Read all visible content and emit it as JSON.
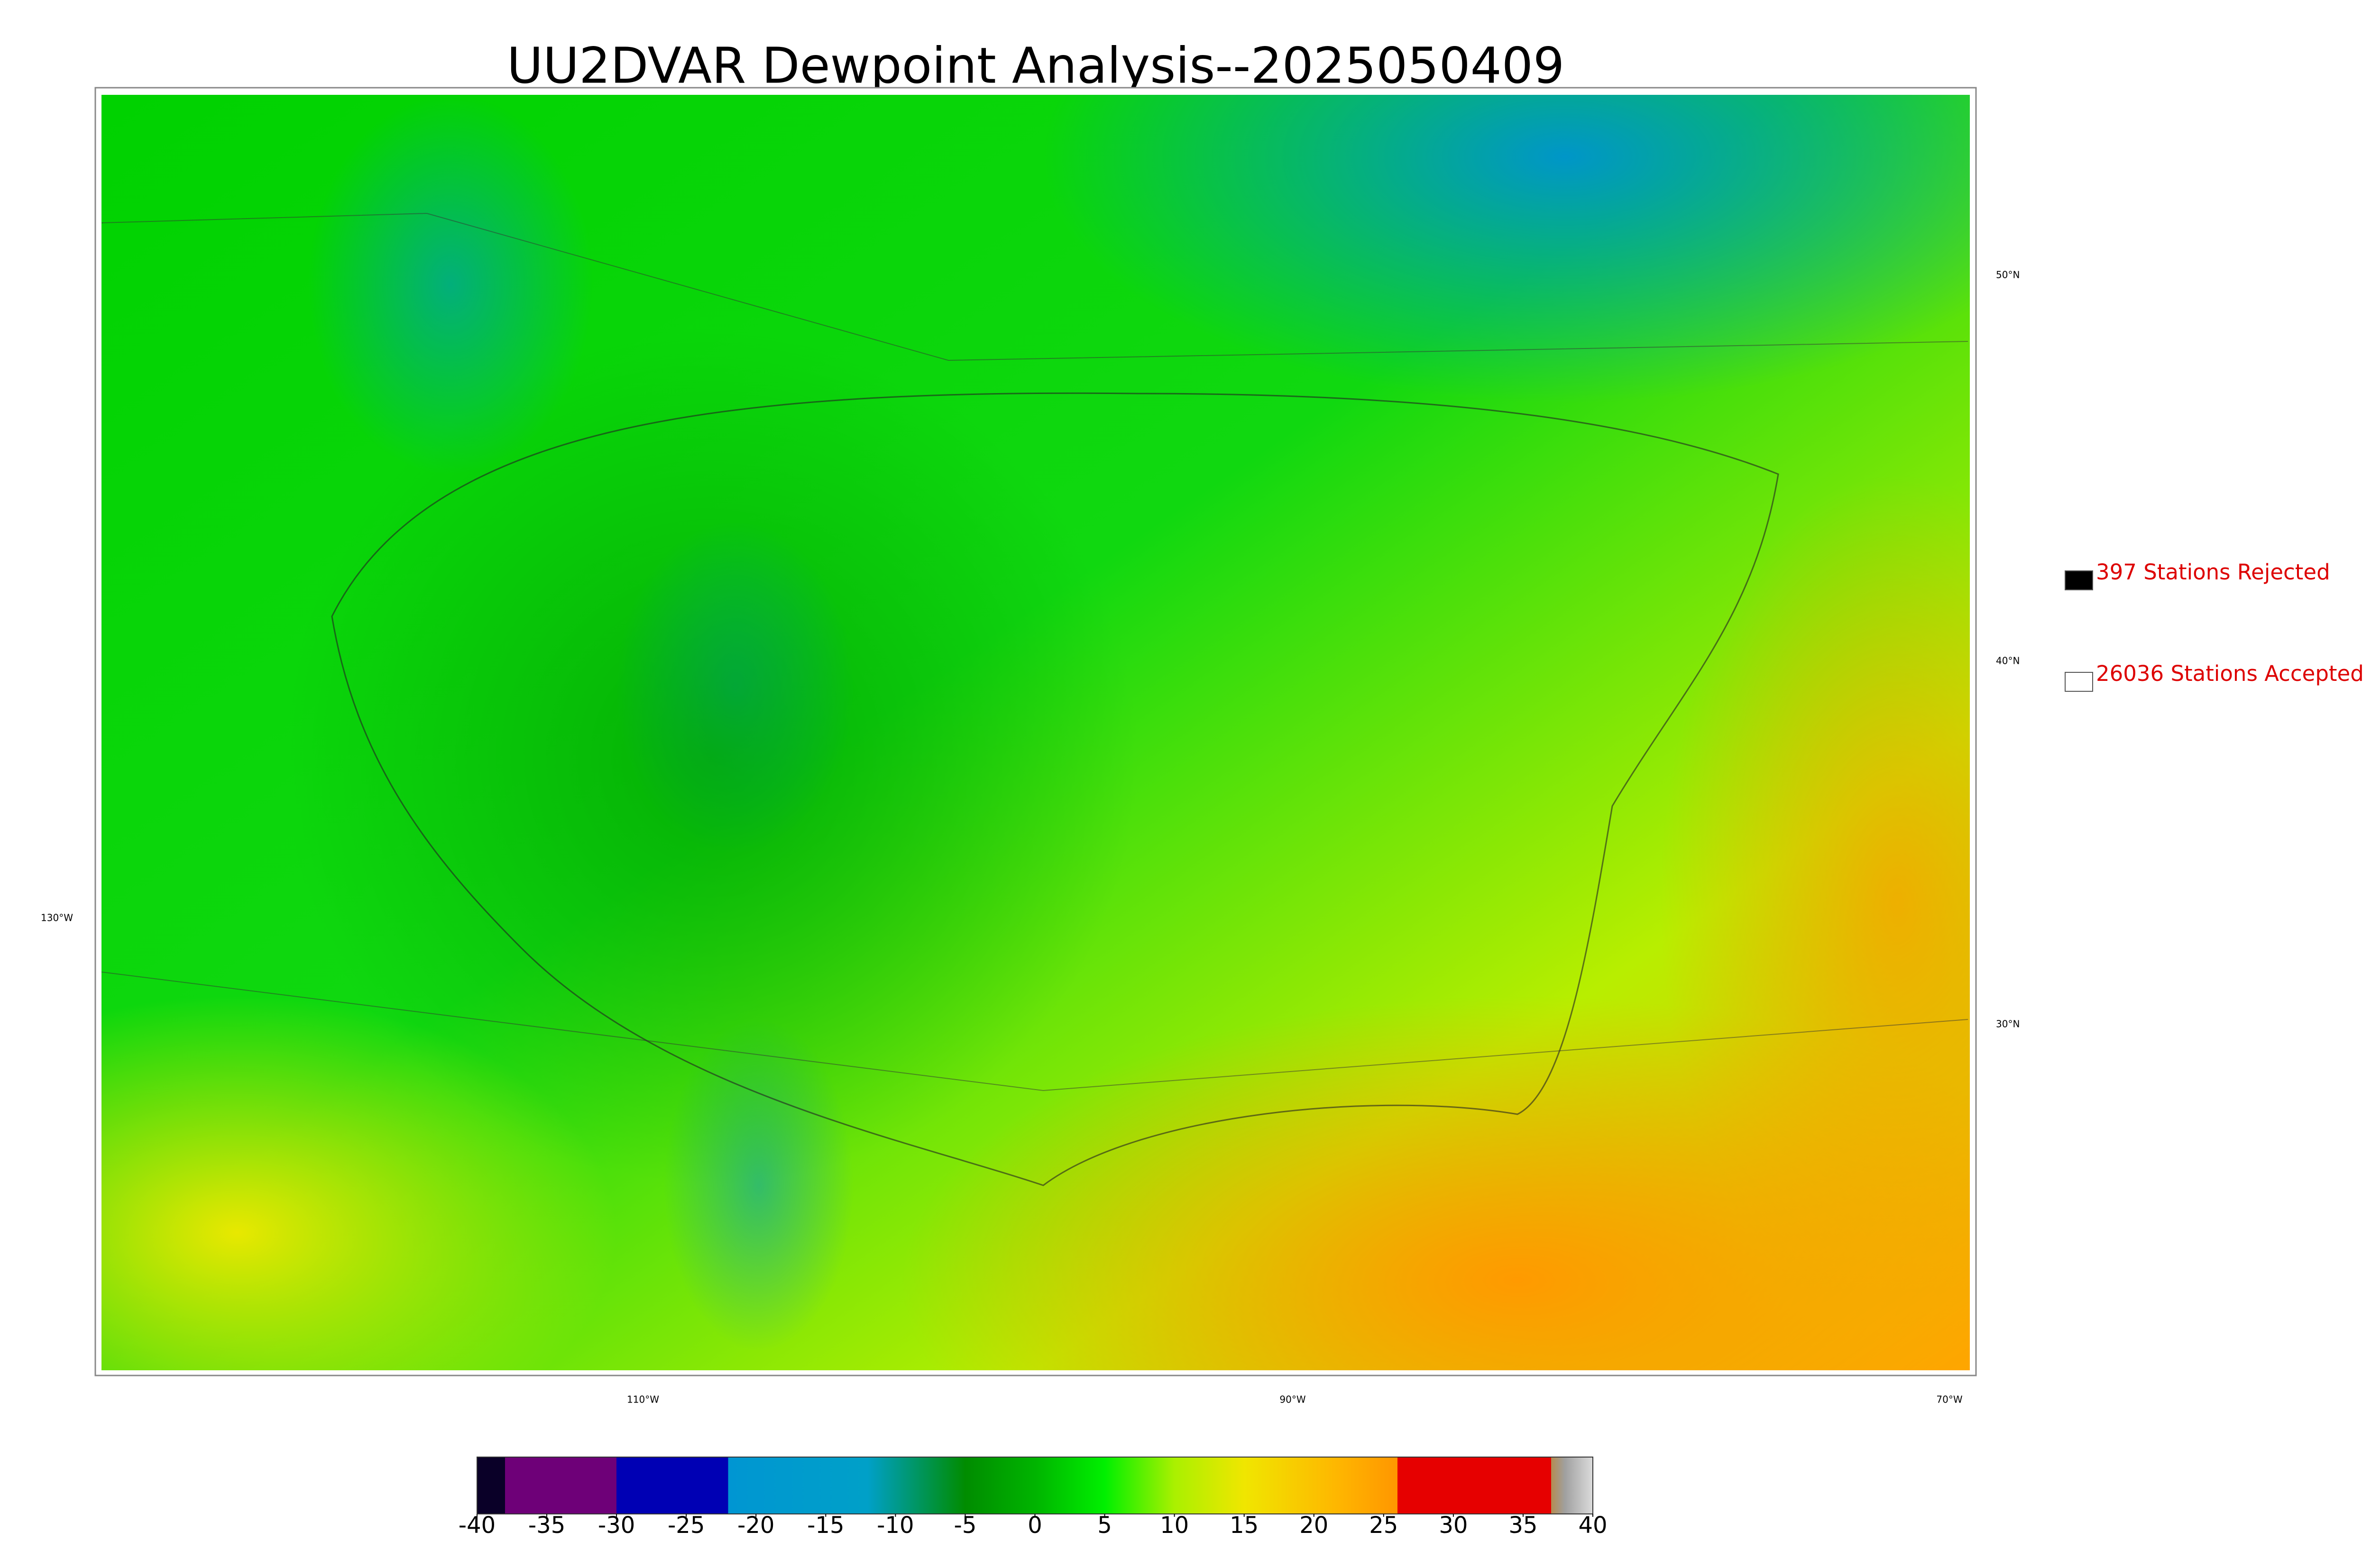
{
  "title": "UU2DVAR Dewpoint Analysis--2025050409",
  "legend": [
    {
      "label": "397 Stations Rejected",
      "color": "#000000"
    },
    {
      "label": "26036 Stations Accepted",
      "color": "#ffffff"
    }
  ],
  "latitude_labels": [
    "50°N",
    "40°N",
    "30°N"
  ],
  "longitude_labels": [
    "130°W",
    "110°W",
    "90°W",
    "70°W"
  ],
  "colorbar": {
    "lim": [
      -40,
      40
    ],
    "ticks": [
      -40,
      -35,
      -30,
      -25,
      -20,
      -15,
      -10,
      -5,
      0,
      5,
      10,
      15,
      20,
      25,
      30,
      35,
      40
    ],
    "stops": [
      {
        "value": -40,
        "color": "#0a0028"
      },
      {
        "value": -38,
        "color": "#0a0028"
      },
      {
        "value": -38,
        "color": "#6e0078"
      },
      {
        "value": -30,
        "color": "#6e0078"
      },
      {
        "value": -30,
        "color": "#0000b4"
      },
      {
        "value": -22,
        "color": "#0000b4"
      },
      {
        "value": -22,
        "color": "#0096d2"
      },
      {
        "value": -12,
        "color": "#00a0c8"
      },
      {
        "value": -5,
        "color": "#008c00"
      },
      {
        "value": 0,
        "color": "#00b400"
      },
      {
        "value": 5,
        "color": "#00f000"
      },
      {
        "value": 10,
        "color": "#aaf000"
      },
      {
        "value": 15,
        "color": "#f0e600"
      },
      {
        "value": 22,
        "color": "#ffb400"
      },
      {
        "value": 26,
        "color": "#ff9600"
      },
      {
        "value": 26,
        "color": "#e60000"
      },
      {
        "value": 37,
        "color": "#e60000"
      },
      {
        "value": 37,
        "color": "#b48c50"
      },
      {
        "value": 38,
        "color": "#a0a0a0"
      },
      {
        "value": 40,
        "color": "#dcdcdc"
      }
    ]
  }
}
